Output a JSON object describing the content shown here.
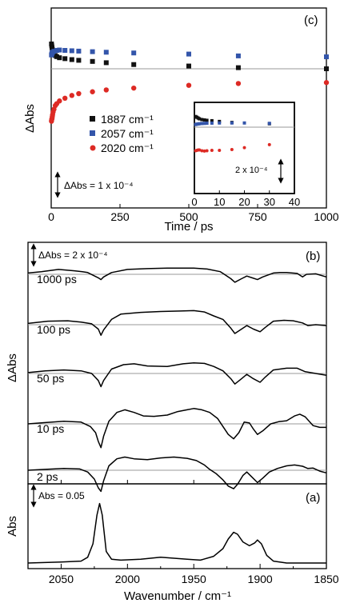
{
  "chart_data": [
    {
      "panel": "(c)",
      "type": "scatter",
      "xlabel": "Time / ps",
      "ylabel": "ΔAbs",
      "xlim": [
        0,
        1000
      ],
      "xticks": [
        0,
        250,
        500,
        750,
        1000
      ],
      "scale_bar": "ΔAbs = 1 x 10⁻⁴",
      "legend_position": "center",
      "series": [
        {
          "name": "1887 cm⁻¹",
          "color": "#111111",
          "marker": "square",
          "x": [
            1,
            2,
            3,
            4,
            5,
            7,
            10,
            15,
            20,
            30,
            50,
            75,
            100,
            150,
            200,
            300,
            500,
            680,
            1000
          ],
          "y": [
            1.35,
            1.25,
            1.15,
            1.05,
            0.95,
            0.88,
            0.8,
            0.72,
            0.66,
            0.6,
            0.55,
            0.5,
            0.46,
            0.4,
            0.33,
            0.23,
            0.15,
            0.06,
            0.0
          ]
        },
        {
          "name": "2057 cm⁻¹",
          "color": "#3355aa",
          "marker": "square",
          "x": [
            1,
            2,
            3,
            5,
            10,
            20,
            30,
            50,
            75,
            100,
            150,
            200,
            300,
            500,
            680,
            1000
          ],
          "y": [
            0.75,
            0.8,
            0.85,
            0.9,
            0.95,
            1.0,
            1.02,
            1.0,
            0.98,
            0.96,
            0.93,
            0.9,
            0.86,
            0.8,
            0.7,
            0.65
          ]
        },
        {
          "name": "2020 cm⁻¹",
          "color": "#dd2a24",
          "marker": "circle",
          "x": [
            1,
            2,
            3,
            4,
            5,
            7,
            10,
            15,
            20,
            30,
            50,
            75,
            100,
            150,
            200,
            300,
            500,
            680,
            1000
          ],
          "y": [
            -2.85,
            -2.75,
            -2.7,
            -2.6,
            -2.5,
            -2.35,
            -2.2,
            -2.0,
            -1.9,
            -1.75,
            -1.6,
            -1.45,
            -1.35,
            -1.25,
            -1.15,
            -1.05,
            -0.9,
            -0.8,
            -0.75
          ]
        }
      ]
    },
    {
      "panel": "(c) inset",
      "type": "scatter",
      "xlim": [
        0,
        40
      ],
      "xticks": [
        0,
        10,
        20,
        30,
        40
      ],
      "scale_bar": "2 x 10⁻⁴",
      "series": [
        {
          "name": "1887 cm⁻¹",
          "x": [
            0.5,
            1,
            1.5,
            2,
            3,
            4,
            5,
            7,
            10,
            15,
            30
          ],
          "y": [
            1.4,
            1.3,
            1.2,
            1.1,
            1.0,
            0.95,
            0.9,
            0.85,
            0.75,
            0.62,
            0.45
          ]
        },
        {
          "name": "2057 cm⁻¹",
          "x": [
            0.5,
            1,
            1.5,
            2,
            3,
            4,
            5,
            7,
            10,
            15,
            20,
            30
          ],
          "y": [
            0.35,
            0.4,
            0.42,
            0.45,
            0.48,
            0.5,
            0.52,
            0.53,
            0.55,
            0.55,
            0.55,
            0.5
          ]
        },
        {
          "name": "2020 cm⁻¹",
          "x": [
            0.5,
            1,
            1.5,
            2,
            3,
            4,
            5,
            7,
            10,
            15,
            20,
            30
          ],
          "y": [
            -3.1,
            -3.05,
            -3.0,
            -3.0,
            -3.1,
            -3.15,
            -3.1,
            -3.05,
            -3.05,
            -2.95,
            -2.7,
            -2.3
          ]
        }
      ]
    },
    {
      "panel": "(b)",
      "type": "line",
      "xlabel": "",
      "ylabel": "ΔAbs",
      "xlim": [
        2075,
        1850
      ],
      "scale_bar": "ΔAbs = 2 x 10⁻⁴",
      "series": [
        {
          "name": "1000 ps",
          "x": [
            2075,
            2065,
            2052,
            2040,
            2034,
            2030,
            2022,
            2020,
            2018,
            2012,
            2000,
            1985,
            1970,
            1950,
            1940,
            1930,
            1928,
            1922,
            1919,
            1914,
            1910,
            1906,
            1902,
            1898,
            1890,
            1885,
            1880,
            1872,
            1868,
            1865,
            1858,
            1850
          ],
          "y": [
            0.15,
            0.3,
            0.55,
            0.4,
            0.3,
            0.2,
            -0.4,
            -0.6,
            -0.3,
            0.2,
            0.55,
            0.65,
            0.7,
            0.7,
            0.6,
            0.3,
            0.1,
            -0.5,
            -0.9,
            -0.5,
            -0.2,
            -0.4,
            -0.6,
            -0.3,
            0.15,
            0.2,
            0.2,
            0.1,
            -0.3,
            0.0,
            0.05,
            -0.3
          ]
        },
        {
          "name": "100 ps",
          "x": [
            2075,
            2060,
            2045,
            2035,
            2027,
            2022,
            2020,
            2018,
            2012,
            2005,
            1990,
            1975,
            1960,
            1950,
            1942,
            1935,
            1928,
            1922,
            1919,
            1914,
            1910,
            1905,
            1900,
            1896,
            1890,
            1882,
            1875,
            1868,
            1864,
            1858,
            1850
          ],
          "y": [
            0.15,
            0.4,
            0.45,
            0.3,
            0.1,
            -0.5,
            -1.2,
            -0.6,
            0.6,
            1.2,
            1.4,
            1.5,
            1.55,
            1.6,
            1.45,
            1.0,
            0.6,
            -0.4,
            -1.0,
            -0.5,
            -0.1,
            -0.5,
            -0.8,
            -0.3,
            0.4,
            0.5,
            0.45,
            0.2,
            -0.1,
            0.0,
            -0.1
          ]
        },
        {
          "name": "50 ps",
          "x": [
            2075,
            2062,
            2048,
            2035,
            2027,
            2022,
            2020,
            2018,
            2012,
            2003,
            1995,
            1985,
            1970,
            1958,
            1950,
            1942,
            1935,
            1928,
            1922,
            1919,
            1914,
            1910,
            1905,
            1900,
            1896,
            1890,
            1880,
            1872,
            1866,
            1858,
            1850
          ],
          "y": [
            0.1,
            0.3,
            0.4,
            0.3,
            0.0,
            -0.8,
            -1.5,
            -0.8,
            0.5,
            1.0,
            1.1,
            0.85,
            0.8,
            1.1,
            1.2,
            1.15,
            0.8,
            0.3,
            -0.6,
            -1.2,
            -0.6,
            -0.1,
            -0.6,
            -1.0,
            -0.4,
            0.4,
            0.6,
            0.6,
            0.2,
            0.0,
            -0.2
          ]
        },
        {
          "name": "10 ps",
          "x": [
            2075,
            2062,
            2048,
            2035,
            2028,
            2024,
            2022,
            2020,
            2018,
            2014,
            2008,
            2002,
            1995,
            1988,
            1980,
            1970,
            1962,
            1955,
            1950,
            1944,
            1938,
            1932,
            1928,
            1924,
            1920,
            1916,
            1912,
            1908,
            1905,
            1902,
            1898,
            1892,
            1886,
            1880,
            1874,
            1870,
            1866,
            1860,
            1855,
            1850
          ],
          "y": [
            0.0,
            0.15,
            0.3,
            0.2,
            -0.3,
            -1.0,
            -2.0,
            -2.7,
            -1.4,
            0.3,
            1.3,
            1.6,
            1.3,
            0.9,
            0.85,
            1.0,
            1.4,
            1.6,
            1.75,
            1.6,
            1.3,
            0.6,
            -0.3,
            -1.2,
            -1.7,
            -1.0,
            0.2,
            0.1,
            -0.6,
            -1.2,
            -0.8,
            0.0,
            0.25,
            0.35,
            0.9,
            1.1,
            0.8,
            -0.2,
            -0.4,
            -0.4
          ]
        },
        {
          "name": "2 ps",
          "x": [
            2075,
            2062,
            2048,
            2036,
            2030,
            2025,
            2022,
            2020,
            2018,
            2014,
            2008,
            2002,
            1995,
            1985,
            1975,
            1965,
            1955,
            1948,
            1942,
            1938,
            1933,
            1928,
            1924,
            1920,
            1917,
            1913,
            1910,
            1906,
            1902,
            1898,
            1893,
            1887,
            1880,
            1874,
            1868,
            1864,
            1860,
            1855,
            1850
          ],
          "y": [
            0.0,
            0.1,
            0.2,
            0.15,
            -0.2,
            -1.0,
            -2.0,
            -2.4,
            -1.2,
            0.5,
            1.3,
            1.5,
            1.3,
            1.2,
            1.4,
            1.5,
            1.35,
            1.1,
            0.6,
            0.1,
            -0.4,
            -1.1,
            -1.8,
            -2.1,
            -1.6,
            -0.6,
            -0.2,
            -0.8,
            -1.4,
            -0.9,
            -0.2,
            0.2,
            0.5,
            0.6,
            0.45,
            0.2,
            0.25,
            -0.1,
            -0.3
          ]
        }
      ]
    },
    {
      "panel": "(a)",
      "type": "line",
      "xlabel": "Wavenumber / cm⁻¹",
      "ylabel": "Abs",
      "xlim": [
        2075,
        1850
      ],
      "xticks": [
        2050,
        2000,
        1950,
        1900,
        1850
      ],
      "scale_bar": "Abs = 0.05",
      "series": [
        {
          "name": "",
          "x": [
            2075,
            2050,
            2035,
            2030,
            2026,
            2023,
            2021,
            2019,
            2016,
            2012,
            2005,
            1990,
            1975,
            1955,
            1945,
            1935,
            1928,
            1924,
            1920,
            1917,
            1913,
            1908,
            1904,
            1902,
            1899,
            1895,
            1890,
            1880,
            1870,
            1860,
            1850
          ],
          "y": [
            0.0,
            0.001,
            0.002,
            0.006,
            0.02,
            0.05,
            0.062,
            0.05,
            0.012,
            0.004,
            0.003,
            0.004,
            0.006,
            0.004,
            0.003,
            0.007,
            0.015,
            0.025,
            0.032,
            0.03,
            0.022,
            0.018,
            0.021,
            0.024,
            0.02,
            0.008,
            0.002,
            0.0,
            0.0,
            0.0,
            0.0
          ]
        }
      ]
    }
  ]
}
